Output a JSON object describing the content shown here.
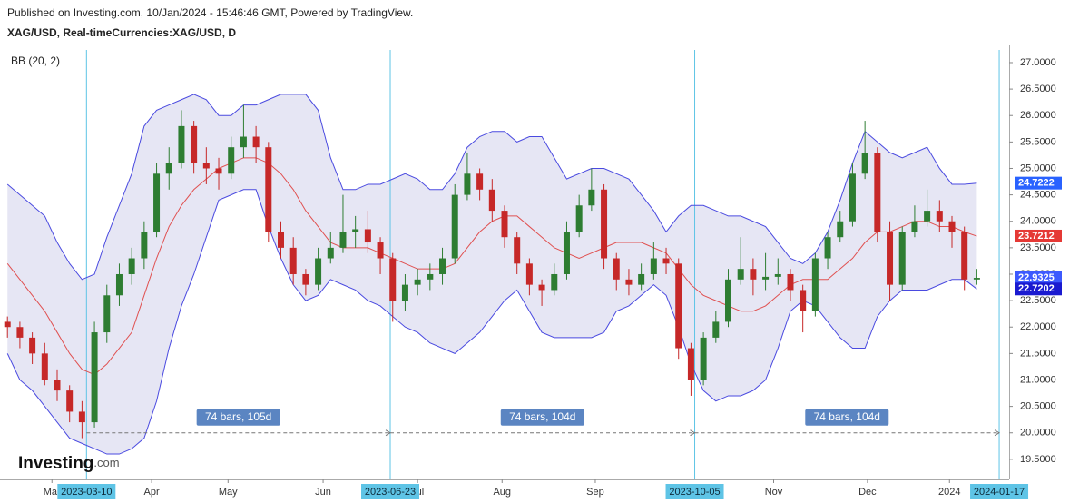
{
  "chart_data": {
    "type": "candlestick",
    "title": "Published on Investing.com, 10/Jan/2024 - 15:46:46 GMT, Powered by TradingView.",
    "subtitle": "XAG/USD, Real-timeCurrencies:XAG/USD, D",
    "indicator": "BB (20, 2)",
    "watermark": [
      "Investing",
      ".com"
    ],
    "xlim": [
      -0.6,
      80.6
    ],
    "ylim": [
      19.12,
      27.24
    ],
    "yticks": [
      {
        "value": 19.5,
        "label": "19.5000"
      },
      {
        "value": 20,
        "label": "20.0000"
      },
      {
        "value": 20.5,
        "label": "20.5000"
      },
      {
        "value": 21,
        "label": "21.0000"
      },
      {
        "value": 21.5,
        "label": "21.5000"
      },
      {
        "value": 22,
        "label": "22.0000"
      },
      {
        "value": 22.5,
        "label": "22.5000"
      },
      {
        "value": 23,
        "label": "23.0000"
      },
      {
        "value": 23.5,
        "label": "23.5000"
      },
      {
        "value": 24,
        "label": "24.0000"
      },
      {
        "value": 24.5,
        "label": "24.5000"
      },
      {
        "value": 25,
        "label": "25.0000"
      },
      {
        "value": 25.5,
        "label": "25.5000"
      },
      {
        "value": 26,
        "label": "26.0000"
      },
      {
        "value": 26.5,
        "label": "26.5000"
      },
      {
        "value": 27,
        "label": "27.0000"
      }
    ],
    "xticks": [
      {
        "value": 3.58,
        "label": "Mar"
      },
      {
        "value": 11.6,
        "label": "Apr"
      },
      {
        "value": 17.75,
        "label": "May"
      },
      {
        "value": 25.4,
        "label": "Jun"
      },
      {
        "value": 33.0,
        "label": "Jul"
      },
      {
        "value": 39.8,
        "label": "Aug"
      },
      {
        "value": 47.3,
        "label": "Sep"
      },
      {
        "value": 61.65,
        "label": "Nov"
      },
      {
        "value": 69.2,
        "label": "Dec"
      },
      {
        "value": 75.8,
        "label": "2024"
      }
    ],
    "markers": [
      {
        "value": 6.36,
        "label": "2023-03-10"
      },
      {
        "value": 30.8,
        "label": "2023-06-23"
      },
      {
        "value": 55.3,
        "label": "2023-10-05"
      },
      {
        "value": 79.8,
        "label": "2024-01-17"
      }
    ],
    "measure_level": 20.0,
    "measures": [
      {
        "from": 6.36,
        "to": 30.8,
        "label": "74 bars, 105d"
      },
      {
        "from": 30.8,
        "to": 55.3,
        "label": "74 bars, 104d"
      },
      {
        "from": 55.3,
        "to": 79.8,
        "label": "74 bars, 104d"
      }
    ],
    "up_color": "#2e7d32",
    "down_color": "#c62828",
    "candles": [
      [
        22.1,
        22.2,
        21.8,
        22.0
      ],
      [
        22.0,
        22.1,
        21.6,
        21.8
      ],
      [
        21.8,
        21.9,
        21.3,
        21.5
      ],
      [
        21.5,
        21.7,
        20.9,
        21.0
      ],
      [
        21.0,
        21.2,
        20.6,
        20.8
      ],
      [
        20.8,
        20.9,
        20.2,
        20.4
      ],
      [
        20.4,
        20.6,
        19.9,
        20.2
      ],
      [
        20.2,
        22.1,
        20.1,
        21.9
      ],
      [
        21.9,
        22.8,
        21.7,
        22.6
      ],
      [
        22.6,
        23.2,
        22.4,
        23.0
      ],
      [
        23.0,
        23.5,
        22.8,
        23.3
      ],
      [
        23.3,
        24.0,
        23.1,
        23.8
      ],
      [
        23.8,
        25.1,
        23.7,
        24.9
      ],
      [
        24.9,
        25.4,
        24.6,
        25.1
      ],
      [
        25.1,
        26.1,
        25.0,
        25.8
      ],
      [
        25.8,
        25.9,
        24.9,
        25.1
      ],
      [
        25.1,
        25.4,
        24.7,
        25.0
      ],
      [
        25.0,
        25.2,
        24.6,
        24.9
      ],
      [
        24.9,
        25.6,
        24.8,
        25.4
      ],
      [
        25.4,
        26.2,
        25.2,
        25.6
      ],
      [
        25.6,
        25.8,
        25.1,
        25.4
      ],
      [
        25.4,
        25.5,
        23.6,
        23.8
      ],
      [
        23.8,
        24.0,
        23.3,
        23.5
      ],
      [
        23.5,
        23.7,
        22.8,
        23.0
      ],
      [
        23.0,
        23.1,
        22.6,
        22.8
      ],
      [
        22.8,
        23.5,
        22.7,
        23.3
      ],
      [
        23.3,
        23.8,
        23.2,
        23.5
      ],
      [
        23.5,
        24.5,
        23.4,
        23.8
      ],
      [
        23.8,
        24.1,
        23.5,
        23.85
      ],
      [
        23.85,
        24.2,
        23.4,
        23.6
      ],
      [
        23.6,
        23.7,
        23.0,
        23.3
      ],
      [
        23.3,
        23.4,
        22.1,
        22.5
      ],
      [
        22.5,
        23.0,
        22.3,
        22.8
      ],
      [
        22.8,
        23.1,
        22.6,
        22.9
      ],
      [
        22.9,
        23.2,
        22.7,
        23.0
      ],
      [
        23.0,
        23.5,
        22.8,
        23.3
      ],
      [
        23.3,
        24.7,
        23.2,
        24.5
      ],
      [
        24.5,
        25.3,
        24.4,
        24.9
      ],
      [
        24.9,
        25.0,
        24.4,
        24.6
      ],
      [
        24.6,
        24.8,
        24.0,
        24.2
      ],
      [
        24.2,
        24.3,
        23.5,
        23.7
      ],
      [
        23.7,
        23.8,
        23.0,
        23.2
      ],
      [
        23.2,
        23.3,
        22.6,
        22.8
      ],
      [
        22.8,
        22.9,
        22.4,
        22.7
      ],
      [
        22.7,
        23.2,
        22.6,
        23.0
      ],
      [
        23.0,
        24.0,
        22.9,
        23.8
      ],
      [
        23.8,
        24.5,
        23.7,
        24.3
      ],
      [
        24.3,
        25.0,
        24.2,
        24.6
      ],
      [
        24.6,
        24.7,
        23.1,
        23.3
      ],
      [
        23.3,
        23.4,
        22.7,
        22.9
      ],
      [
        22.9,
        23.1,
        22.6,
        22.8
      ],
      [
        22.8,
        23.2,
        22.7,
        23.0
      ],
      [
        23.0,
        23.6,
        22.9,
        23.3
      ],
      [
        23.3,
        23.5,
        23.0,
        23.2
      ],
      [
        23.2,
        23.3,
        21.4,
        21.6
      ],
      [
        21.6,
        21.7,
        20.7,
        21.0
      ],
      [
        21.0,
        21.9,
        20.9,
        21.8
      ],
      [
        21.8,
        22.3,
        21.7,
        22.1
      ],
      [
        22.1,
        23.1,
        22.0,
        22.9
      ],
      [
        22.9,
        23.7,
        22.8,
        23.1
      ],
      [
        23.1,
        23.3,
        22.6,
        22.9
      ],
      [
        22.9,
        23.4,
        22.7,
        22.95
      ],
      [
        22.95,
        23.3,
        22.8,
        23.0
      ],
      [
        23.0,
        23.1,
        22.5,
        22.7
      ],
      [
        22.7,
        22.8,
        21.9,
        22.3
      ],
      [
        22.3,
        23.4,
        22.2,
        23.3
      ],
      [
        23.3,
        23.8,
        23.1,
        23.7
      ],
      [
        23.7,
        24.2,
        23.6,
        24.0
      ],
      [
        24.0,
        25.1,
        23.9,
        24.9
      ],
      [
        24.9,
        25.9,
        24.8,
        25.3
      ],
      [
        25.3,
        25.4,
        23.6,
        23.8
      ],
      [
        23.8,
        24.0,
        22.5,
        22.8
      ],
      [
        22.8,
        23.9,
        22.7,
        23.8
      ],
      [
        23.8,
        24.3,
        23.7,
        24.0
      ],
      [
        24.0,
        24.6,
        23.9,
        24.2
      ],
      [
        24.2,
        24.4,
        23.8,
        24.0
      ],
      [
        24.0,
        24.1,
        23.5,
        23.8
      ],
      [
        23.8,
        23.9,
        22.7,
        22.9
      ],
      [
        22.9,
        23.1,
        22.8,
        22.93
      ]
    ],
    "bands": {
      "upper_color": "#4a4ae0",
      "basis_color": "#e05050",
      "fill": "#e6e6f4",
      "upper": [
        24.7,
        24.5,
        24.3,
        24.1,
        23.6,
        23.2,
        22.9,
        23.0,
        23.7,
        24.3,
        24.9,
        25.8,
        26.1,
        26.2,
        26.3,
        26.4,
        26.3,
        26.0,
        26.0,
        26.2,
        26.2,
        26.3,
        26.4,
        26.4,
        26.4,
        26.1,
        25.2,
        24.6,
        24.6,
        24.7,
        24.7,
        24.8,
        24.9,
        24.8,
        24.6,
        24.6,
        24.9,
        25.4,
        25.6,
        25.7,
        25.7,
        25.5,
        25.6,
        25.6,
        25.2,
        24.8,
        24.9,
        25.0,
        25.0,
        24.9,
        24.8,
        24.5,
        24.2,
        23.8,
        24.1,
        24.3,
        24.3,
        24.2,
        24.1,
        24.1,
        24.0,
        23.9,
        23.6,
        23.3,
        23.2,
        23.4,
        23.8,
        24.4,
        25.1,
        25.7,
        25.5,
        25.3,
        25.2,
        25.3,
        25.4,
        25.0,
        24.7,
        24.7,
        24.72
      ],
      "basis": [
        23.2,
        22.9,
        22.6,
        22.3,
        21.9,
        21.5,
        21.2,
        21.1,
        21.3,
        21.6,
        21.9,
        22.6,
        23.3,
        23.9,
        24.3,
        24.6,
        24.8,
        25.0,
        25.1,
        25.2,
        25.2,
        25.1,
        24.9,
        24.6,
        24.2,
        23.9,
        23.6,
        23.5,
        23.5,
        23.5,
        23.4,
        23.3,
        23.2,
        23.1,
        23.1,
        23.1,
        23.2,
        23.5,
        23.8,
        24.0,
        24.1,
        24.1,
        23.9,
        23.7,
        23.5,
        23.4,
        23.3,
        23.4,
        23.5,
        23.6,
        23.6,
        23.6,
        23.5,
        23.4,
        23.1,
        22.8,
        22.6,
        22.5,
        22.4,
        22.3,
        22.3,
        22.4,
        22.6,
        22.8,
        22.9,
        22.9,
        22.9,
        23.1,
        23.3,
        23.6,
        23.8,
        23.8,
        23.9,
        24.0,
        24.0,
        23.9,
        23.9,
        23.8,
        23.72
      ],
      "lower": [
        21.5,
        21.0,
        20.8,
        20.5,
        20.2,
        19.9,
        19.8,
        19.7,
        19.6,
        19.6,
        19.7,
        19.9,
        20.6,
        21.6,
        22.4,
        23.0,
        23.7,
        24.4,
        24.5,
        24.6,
        24.6,
        23.9,
        23.3,
        22.8,
        22.5,
        22.6,
        22.9,
        22.8,
        22.7,
        22.5,
        22.4,
        22.2,
        22.0,
        21.9,
        21.7,
        21.6,
        21.5,
        21.7,
        21.9,
        22.2,
        22.5,
        22.7,
        22.3,
        21.9,
        21.8,
        21.8,
        21.8,
        21.8,
        21.9,
        22.3,
        22.4,
        22.6,
        22.8,
        22.6,
        22.0,
        21.3,
        20.8,
        20.6,
        20.7,
        20.7,
        20.8,
        21.0,
        21.6,
        22.3,
        22.5,
        22.4,
        22.1,
        21.8,
        21.6,
        21.6,
        22.2,
        22.5,
        22.7,
        22.7,
        22.7,
        22.8,
        22.9,
        22.9,
        22.72
      ]
    },
    "last_labels": [
      {
        "value": 24.7222,
        "color": "#2962ff"
      },
      {
        "value": 23.7212,
        "color": "#e53935"
      },
      {
        "value": 22.9325,
        "color": "#3d5afe"
      },
      {
        "value": 22.7202,
        "color": "#1a1ad0"
      }
    ]
  }
}
